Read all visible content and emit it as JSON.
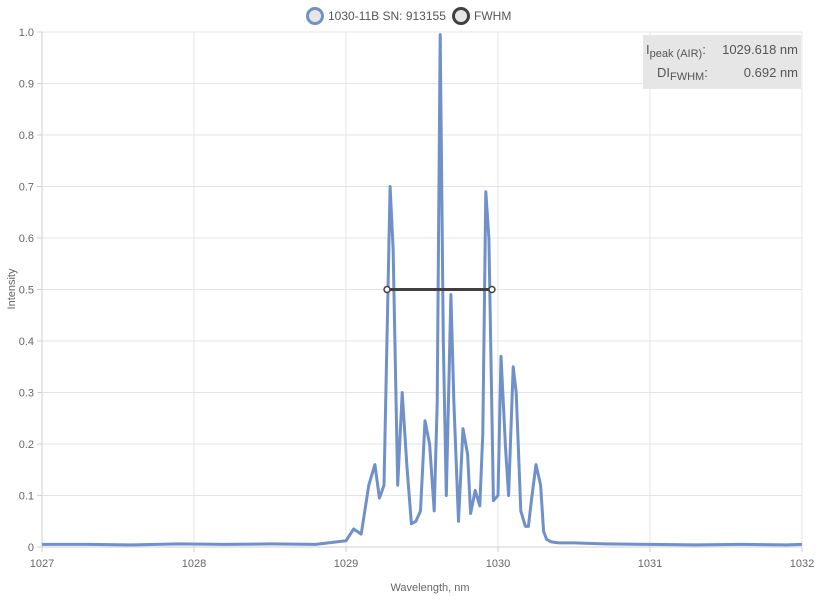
{
  "chart_data": {
    "type": "line",
    "xlabel": "Wavelength, nm",
    "ylabel": "Intensity",
    "xlim": [
      1027,
      1032
    ],
    "ylim": [
      0,
      1.0
    ],
    "x_ticks": [
      "1027",
      "1028",
      "1029",
      "1030",
      "1031",
      "1032"
    ],
    "x_tick_values": [
      1027,
      1028,
      1029,
      1030,
      1031,
      1032
    ],
    "y_ticks": [
      "0",
      "0.1",
      "0.2",
      "0.3",
      "0.4",
      "0.5",
      "0.6",
      "0.7",
      "0.8",
      "0.9",
      "1.0"
    ],
    "y_tick_values": [
      0,
      0.1,
      0.2,
      0.3,
      0.4,
      0.5,
      0.6,
      0.7,
      0.8,
      0.9,
      1.0
    ],
    "grid": true,
    "legend_position": "top",
    "series": [
      {
        "name": "1030-11B SN: 913155",
        "color": "#6f90c9",
        "x": [
          1027.0,
          1027.3,
          1027.6,
          1027.9,
          1028.2,
          1028.5,
          1028.8,
          1029.0,
          1029.05,
          1029.1,
          1029.15,
          1029.19,
          1029.22,
          1029.25,
          1029.29,
          1029.31,
          1029.34,
          1029.37,
          1029.4,
          1029.43,
          1029.46,
          1029.49,
          1029.52,
          1029.55,
          1029.58,
          1029.6,
          1029.62,
          1029.64,
          1029.66,
          1029.69,
          1029.71,
          1029.74,
          1029.77,
          1029.8,
          1029.82,
          1029.85,
          1029.88,
          1029.9,
          1029.92,
          1029.94,
          1029.97,
          1030.0,
          1030.02,
          1030.05,
          1030.07,
          1030.1,
          1030.12,
          1030.15,
          1030.18,
          1030.2,
          1030.22,
          1030.25,
          1030.28,
          1030.3,
          1030.32,
          1030.35,
          1030.4,
          1030.5,
          1030.7,
          1031.0,
          1031.3,
          1031.6,
          1031.9,
          1032.0
        ],
        "values": [
          0.005,
          0.005,
          0.004,
          0.006,
          0.005,
          0.006,
          0.005,
          0.012,
          0.035,
          0.025,
          0.12,
          0.16,
          0.095,
          0.12,
          0.7,
          0.58,
          0.12,
          0.3,
          0.16,
          0.045,
          0.05,
          0.07,
          0.245,
          0.2,
          0.07,
          0.28,
          0.995,
          0.4,
          0.1,
          0.49,
          0.28,
          0.05,
          0.23,
          0.18,
          0.065,
          0.11,
          0.08,
          0.22,
          0.69,
          0.6,
          0.09,
          0.1,
          0.37,
          0.19,
          0.1,
          0.35,
          0.3,
          0.07,
          0.04,
          0.04,
          0.09,
          0.16,
          0.12,
          0.03,
          0.015,
          0.01,
          0.008,
          0.008,
          0.006,
          0.005,
          0.004,
          0.005,
          0.004,
          0.005
        ]
      },
      {
        "name": "FWHM",
        "color": "#404040",
        "x": [
          1029.27,
          1029.96
        ],
        "values": [
          0.5,
          0.5
        ]
      }
    ],
    "annotation": {
      "rows": [
        {
          "label_main": "I",
          "label_sub": "peak (AIR)",
          "suffix": ":",
          "value": "1029.618 nm"
        },
        {
          "label_main": "DI",
          "label_sub": "FWHM",
          "suffix": ":",
          "value": "0.692 nm"
        }
      ]
    }
  }
}
